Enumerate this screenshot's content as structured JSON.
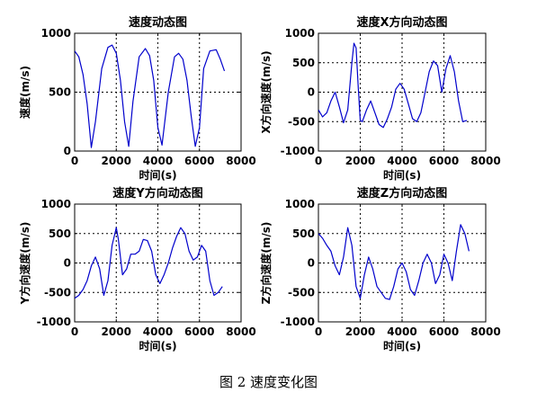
{
  "caption": "图 2  速度变化图",
  "chart_data": [
    {
      "type": "line",
      "title": "速度动态图",
      "xlabel": "时间(s)",
      "ylabel": "速度(m/s)",
      "xlim": [
        0,
        8000
      ],
      "ylim": [
        0,
        1000
      ],
      "xticks": [
        0,
        2000,
        4000,
        6000,
        8000
      ],
      "yticks": [
        0,
        500,
        1000
      ],
      "grid": "dotted",
      "line_color": "#0000cc",
      "series": [
        {
          "x": [
            0,
            200,
            400,
            600,
            800,
            1000,
            1300,
            1600,
            1800,
            2000,
            2200,
            2400,
            2600,
            2800,
            3100,
            3400,
            3600,
            3800,
            4000,
            4200,
            4500,
            4800,
            5000,
            5200,
            5400,
            5600,
            5800,
            6000,
            6200,
            6500,
            6800,
            7000,
            7200
          ],
          "y": [
            850,
            800,
            650,
            400,
            30,
            250,
            700,
            880,
            900,
            830,
            600,
            250,
            40,
            420,
            800,
            870,
            810,
            600,
            200,
            50,
            500,
            800,
            830,
            780,
            600,
            300,
            40,
            200,
            700,
            850,
            860,
            780,
            680
          ]
        }
      ]
    },
    {
      "type": "line",
      "title": "速度X方向动态图",
      "xlabel": "时间(s)",
      "ylabel": "X方向速度(m/s)",
      "xlim": [
        0,
        8000
      ],
      "ylim": [
        -1000,
        1000
      ],
      "xticks": [
        0,
        2000,
        4000,
        6000,
        8000
      ],
      "yticks": [
        -1000,
        -500,
        0,
        500,
        1000
      ],
      "grid": "dotted",
      "line_color": "#0000cc",
      "series": [
        {
          "x": [
            0,
            200,
            400,
            600,
            800,
            1000,
            1200,
            1400,
            1600,
            1700,
            1800,
            1900,
            2000,
            2100,
            2300,
            2500,
            2700,
            2900,
            3100,
            3300,
            3500,
            3700,
            3900,
            4100,
            4300,
            4500,
            4700,
            4900,
            5100,
            5300,
            5500,
            5700,
            5900,
            6100,
            6300,
            6500,
            6700,
            6900,
            7100
          ],
          "y": [
            -300,
            -420,
            -350,
            -150,
            0,
            -250,
            -520,
            -300,
            500,
            830,
            750,
            100,
            -480,
            -500,
            -300,
            -150,
            -350,
            -550,
            -600,
            -450,
            -250,
            50,
            150,
            50,
            -200,
            -450,
            -500,
            -350,
            0,
            350,
            530,
            450,
            0,
            400,
            620,
            350,
            -150,
            -500,
            -480
          ]
        }
      ]
    },
    {
      "type": "line",
      "title": "速度Y方向动态图",
      "xlabel": "时间(s)",
      "ylabel": "Y方向速度(m/s)",
      "xlim": [
        0,
        8000
      ],
      "ylim": [
        -1000,
        1000
      ],
      "xticks": [
        0,
        2000,
        4000,
        6000,
        8000
      ],
      "yticks": [
        -1000,
        -500,
        0,
        500,
        1000
      ],
      "grid": "dotted",
      "line_color": "#0000cc",
      "series": [
        {
          "x": [
            0,
            200,
            400,
            600,
            800,
            1000,
            1200,
            1400,
            1600,
            1800,
            2000,
            2100,
            2300,
            2500,
            2700,
            2900,
            3100,
            3300,
            3500,
            3700,
            3900,
            4100,
            4300,
            4500,
            4700,
            4900,
            5100,
            5300,
            5500,
            5700,
            5900,
            6100,
            6300,
            6500,
            6700,
            6900,
            7100
          ],
          "y": [
            -600,
            -550,
            -450,
            -300,
            -50,
            100,
            -100,
            -550,
            -300,
            300,
            600,
            400,
            -200,
            -100,
            150,
            150,
            200,
            400,
            380,
            200,
            -200,
            -350,
            -200,
            0,
            250,
            450,
            600,
            500,
            200,
            50,
            100,
            300,
            200,
            -300,
            -550,
            -500,
            -400
          ]
        }
      ]
    },
    {
      "type": "line",
      "title": "速度Z方向动态图",
      "xlabel": "时间(s)",
      "ylabel": "Z方向速度(m/s)",
      "xlim": [
        0,
        8000
      ],
      "ylim": [
        -1000,
        1000
      ],
      "xticks": [
        0,
        2000,
        4000,
        6000,
        8000
      ],
      "yticks": [
        -1000,
        -500,
        0,
        500,
        1000
      ],
      "grid": "dotted",
      "line_color": "#0000cc",
      "series": [
        {
          "x": [
            0,
            200,
            400,
            600,
            800,
            1000,
            1200,
            1400,
            1600,
            1800,
            2000,
            2200,
            2400,
            2600,
            2800,
            3000,
            3200,
            3400,
            3600,
            3800,
            4000,
            4200,
            4400,
            4600,
            4800,
            5000,
            5200,
            5400,
            5600,
            5800,
            6000,
            6200,
            6400,
            6600,
            6800,
            7000,
            7200
          ],
          "y": [
            500,
            420,
            300,
            200,
            -50,
            -200,
            100,
            600,
            300,
            -400,
            -600,
            -200,
            100,
            -100,
            -400,
            -500,
            -600,
            -620,
            -400,
            -100,
            0,
            -150,
            -450,
            -550,
            -300,
            0,
            150,
            0,
            -350,
            -200,
            150,
            0,
            -300,
            200,
            650,
            500,
            200
          ]
        }
      ]
    }
  ]
}
